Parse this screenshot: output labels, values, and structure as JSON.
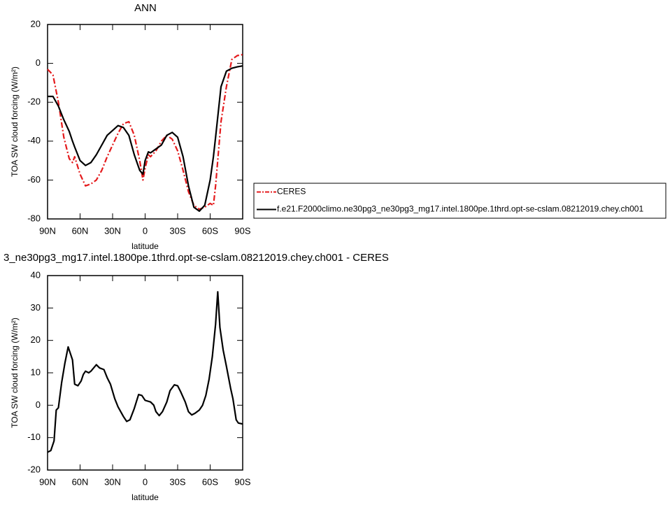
{
  "chart_data": [
    {
      "type": "line",
      "title": "ANN",
      "xlabel": "latitude",
      "ylabel": "TOA SW cloud forcing (W/m²)",
      "x": [
        90,
        85,
        80,
        75,
        70,
        67,
        65,
        60,
        55,
        50,
        45,
        40,
        35,
        30,
        25,
        20,
        15,
        10,
        5,
        2,
        0,
        -3,
        -5,
        -10,
        -15,
        -20,
        -25,
        -30,
        -35,
        -40,
        -45,
        -50,
        -55,
        -60,
        -63,
        -65,
        -70,
        -75,
        -80,
        -85,
        -90
      ],
      "series": [
        {
          "name": "CERES",
          "color": "#e41a1c",
          "dash": true,
          "values": [
            -3,
            -6,
            -20,
            -38,
            -49,
            -51,
            -48,
            -57,
            -63,
            -62,
            -60,
            -55,
            -48,
            -42,
            -36,
            -31,
            -30,
            -37,
            -50,
            -60,
            -54,
            -47,
            -48,
            -45,
            -40,
            -37,
            -39,
            -45,
            -55,
            -66,
            -73,
            -75,
            -74,
            -72,
            -73,
            -63,
            -30,
            -12,
            2,
            4,
            4.5
          ]
        },
        {
          "name": "f.e21.F2000climo.ne30pg3_ne30pg3_mg17.intel.1800pe.1thrd.opt-se-cslam.08212019.chey.ch001",
          "color": "#000000",
          "dash": false,
          "values": [
            -17,
            -17,
            -22,
            -29,
            -35,
            -40,
            -43,
            -50,
            -52.5,
            -51,
            -47,
            -42,
            -37,
            -34.5,
            -32,
            -33,
            -37,
            -47,
            -55,
            -57,
            -50,
            -45.5,
            -46,
            -44,
            -42,
            -37,
            -35.5,
            -38,
            -48,
            -63,
            -74,
            -76,
            -73,
            -60,
            -48,
            -38,
            -12,
            -4,
            -2.5,
            -1.8,
            -1.3
          ]
        }
      ],
      "xlim": [
        90,
        -90
      ],
      "xticks": [
        {
          "value": 90,
          "label": "90N"
        },
        {
          "value": 60,
          "label": "60N"
        },
        {
          "value": 30,
          "label": "30N"
        },
        0,
        {
          "value": -30,
          "label": "30S"
        },
        {
          "value": -60,
          "label": "60S"
        },
        {
          "value": -90,
          "label": "90S"
        }
      ],
      "ylim": [
        -80,
        20
      ],
      "yticks": [
        -80,
        -60,
        -40,
        -20,
        0,
        20
      ]
    },
    {
      "type": "line",
      "title": "3_ne30pg3_mg17.intel.1800pe.1thrd.opt-se-cslam.08212019.chey.ch001 - CERES",
      "xlabel": "latitude",
      "ylabel": "TOA SW cloud forcing (W/m²)",
      "x": [
        90,
        87,
        84,
        82,
        80,
        77,
        74,
        71,
        67,
        65,
        62,
        59,
        57,
        55,
        52,
        50,
        45,
        42,
        38,
        35,
        32,
        28,
        25,
        20,
        17,
        14,
        10,
        6,
        3,
        0,
        -5,
        -8,
        -10,
        -13,
        -16,
        -20,
        -23,
        -27,
        -30,
        -33,
        -37,
        -40,
        -43,
        -46,
        -50,
        -53,
        -56,
        -59,
        -62,
        -65,
        -67,
        -69,
        -72,
        -75,
        -79,
        -81,
        -84,
        -86,
        -90
      ],
      "values": [
        -14.5,
        -14,
        -11,
        -1.5,
        -0.8,
        7,
        13,
        18,
        14,
        6.5,
        6,
        7.5,
        9.5,
        10.5,
        10,
        10.5,
        12.5,
        11.5,
        11,
        8.5,
        6.5,
        2,
        -0.5,
        -3.5,
        -5,
        -4.5,
        -1,
        3.3,
        3,
        1.5,
        1,
        0,
        -2,
        -3.2,
        -2,
        1,
        4.5,
        6.3,
        6,
        4,
        1,
        -2,
        -3,
        -2.5,
        -1.5,
        0,
        3,
        8,
        15,
        25,
        35,
        24,
        17,
        12,
        5,
        2,
        -4.5,
        -5.5,
        -5.8
      ],
      "color": "#000000",
      "xlim": [
        90,
        -90
      ],
      "xticks": [
        {
          "value": 90,
          "label": "90N"
        },
        {
          "value": 60,
          "label": "60N"
        },
        {
          "value": 30,
          "label": "30N"
        },
        0,
        {
          "value": -30,
          "label": "30S"
        },
        {
          "value": -60,
          "label": "60S"
        },
        {
          "value": -90,
          "label": "90S"
        }
      ],
      "ylim": [
        -20,
        40
      ],
      "yticks": [
        -20,
        -10,
        0,
        10,
        20,
        30,
        40
      ]
    }
  ]
}
